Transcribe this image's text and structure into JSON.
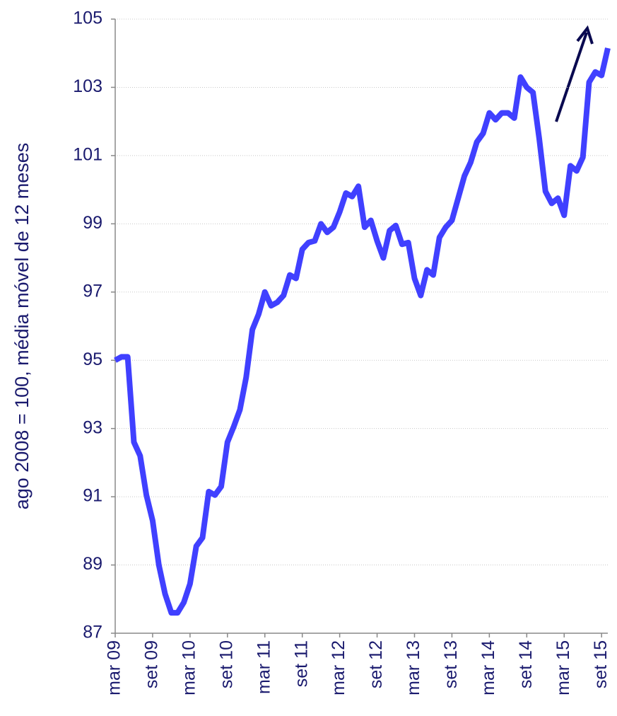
{
  "chart_data": {
    "type": "line",
    "y_label": "ago 2008 = 100, média móvel de 12 meses",
    "categories": [
      "mar 09",
      null,
      null,
      null,
      null,
      null,
      "set 09",
      null,
      null,
      null,
      null,
      null,
      "mar 10",
      null,
      null,
      null,
      null,
      null,
      "set 10",
      null,
      null,
      null,
      null,
      null,
      "mar 11",
      null,
      null,
      null,
      null,
      null,
      "set 11",
      null,
      null,
      null,
      null,
      null,
      "mar 12",
      null,
      null,
      null,
      null,
      null,
      "set 12",
      null,
      null,
      null,
      null,
      null,
      "mar 13",
      null,
      null,
      null,
      null,
      null,
      "set 13",
      null,
      null,
      null,
      null,
      null,
      "mar 14",
      null,
      null,
      null,
      null,
      null,
      "set 14",
      null,
      null,
      null,
      null,
      null,
      "mar 15",
      null,
      null,
      null,
      null,
      null,
      "set 15",
      null
    ],
    "series": [
      {
        "color": "#4040ff",
        "values": [
          95.0,
          95.1,
          95.1,
          92.6,
          92.2,
          91.05,
          90.3,
          89.0,
          88.15,
          87.6,
          87.6,
          87.9,
          88.45,
          89.55,
          89.8,
          91.15,
          91.05,
          91.3,
          92.6,
          93.05,
          93.55,
          94.5,
          95.9,
          96.35,
          97.0,
          96.6,
          96.7,
          96.9,
          97.5,
          97.4,
          98.25,
          98.45,
          98.5,
          99.0,
          98.75,
          98.9,
          99.35,
          99.9,
          99.8,
          100.1,
          98.9,
          99.1,
          98.5,
          98.0,
          98.8,
          98.95,
          98.4,
          98.45,
          97.4,
          96.9,
          97.65,
          97.5,
          98.6,
          98.9,
          99.1,
          99.75,
          100.4,
          100.8,
          101.4,
          101.65,
          102.25,
          102.05,
          102.25,
          102.25,
          102.1,
          103.3,
          103.0,
          102.85,
          101.5,
          99.95,
          99.6,
          99.75,
          99.25,
          100.7,
          100.55,
          100.95,
          103.15,
          103.45,
          103.35,
          104.15
        ]
      }
    ],
    "ylim": [
      87,
      105
    ],
    "yticks": [
      87,
      89,
      91,
      93,
      95,
      97,
      99,
      101,
      103,
      105
    ],
    "grid": true
  }
}
